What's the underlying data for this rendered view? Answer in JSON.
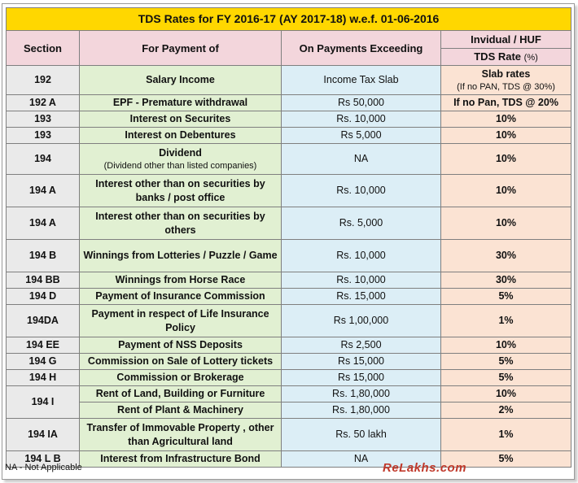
{
  "title": "TDS Rates for FY 2016-17 (AY 2017-18) w.e.f. 01-06-2016",
  "headers": {
    "section": "Section",
    "payment": "For Payment of",
    "exceeding": "On Payments Exceeding",
    "group": "Invidual / HUF",
    "rate": "TDS Rate",
    "rate_unit": "(%)"
  },
  "rows": [
    {
      "section": "192",
      "payment": "Salary Income",
      "exceeding": "Income Tax Slab",
      "rate": "Slab rates",
      "rate_note": "(If no PAN, TDS @ 30%)"
    },
    {
      "section": "192 A",
      "payment": "EPF - Premature withdrawal",
      "exceeding": "Rs 50,000",
      "rate": "If no Pan, TDS @ 20%"
    },
    {
      "section": "193",
      "payment": "Interest on Securites",
      "exceeding": "Rs. 10,000",
      "rate": "10%"
    },
    {
      "section": "193",
      "payment": "Interest on Debentures",
      "exceeding": "Rs 5,000",
      "rate": "10%"
    },
    {
      "section": "194",
      "payment": "Dividend",
      "payment_note": "(Dividend other than listed companies)",
      "exceeding": "NA",
      "rate": "10%"
    },
    {
      "section": "194 A",
      "payment": "Interest other than on securities by banks / post office",
      "exceeding": "Rs. 10,000",
      "rate": "10%"
    },
    {
      "section": "194 A",
      "payment": "Interest other than on securities by others",
      "exceeding": "Rs. 5,000",
      "rate": "10%"
    },
    {
      "section": "194 B",
      "payment": "Winnings from Lotteries / Puzzle / Game",
      "exceeding": "Rs. 10,000",
      "rate": "30%"
    },
    {
      "section": "194 BB",
      "payment": "Winnings from Horse Race",
      "exceeding": "Rs. 10,000",
      "rate": "30%"
    },
    {
      "section": "194 D",
      "payment": "Payment of Insurance Commission",
      "exceeding": "Rs. 15,000",
      "rate": "5%"
    },
    {
      "section": "194DA",
      "payment": "Payment in respect of Life Insurance Policy",
      "exceeding": "Rs 1,00,000",
      "rate": "1%"
    },
    {
      "section": "194 EE",
      "payment": "Payment of NSS Deposits",
      "exceeding": "Rs 2,500",
      "rate": "10%"
    },
    {
      "section": "194 G",
      "payment": "Commission on Sale of Lottery tickets",
      "exceeding": "Rs 15,000",
      "rate": "5%"
    },
    {
      "section": "194 H",
      "payment": "Commission or Brokerage",
      "exceeding": "Rs 15,000",
      "rate": "5%"
    },
    {
      "section": "194 I",
      "payment": "Rent of Land, Building or Furniture",
      "exceeding": "Rs. 1,80,000",
      "rate": "10%"
    },
    {
      "payment": "Rent of Plant & Machinery",
      "exceeding": "Rs. 1,80,000",
      "rate": "2%"
    },
    {
      "section": "194 IA",
      "payment": "Transfer of Immovable Property , other than Agricultural land",
      "exceeding": "Rs. 50 lakh",
      "rate": "1%"
    },
    {
      "section": "194 L B",
      "payment": "Interest from Infrastructure Bond",
      "exceeding": "NA",
      "rate": "5%"
    }
  ],
  "footnote": "NA - Not Applicable",
  "brand": "ReLakhs.com",
  "colors": {
    "title_bg": "#ffd700",
    "header_bg": "#f3d6dc",
    "section_bg": "#eaeaea",
    "payment_bg": "#e1f0d2",
    "exceeding_bg": "#dceef6",
    "rate_bg": "#fbe3d3",
    "brand": "#c0392b"
  }
}
